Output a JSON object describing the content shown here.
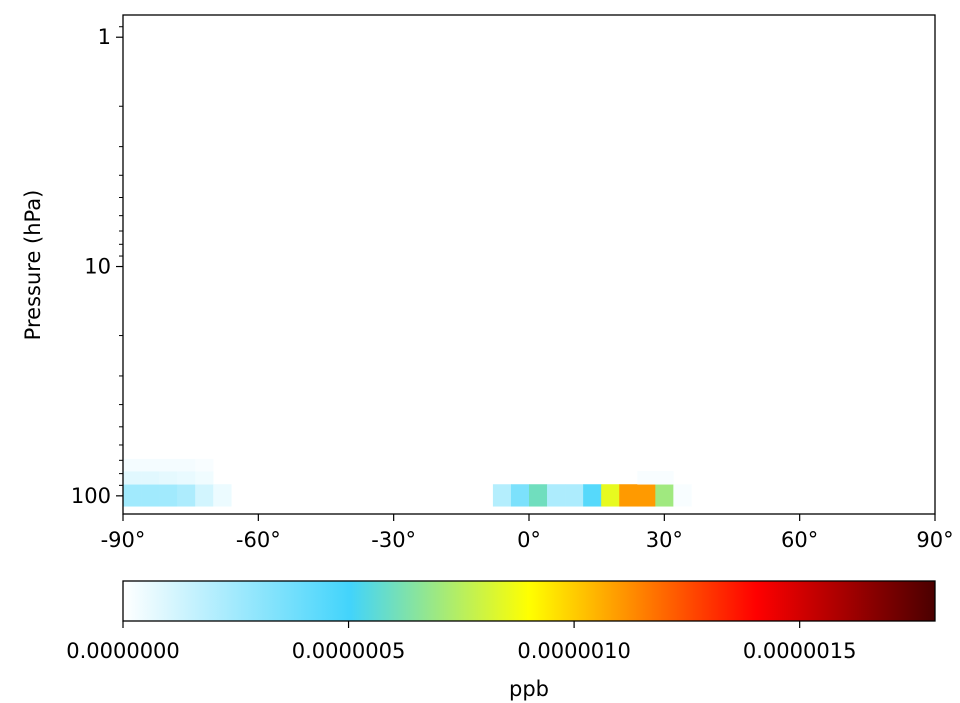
{
  "chart_data": {
    "type": "heatmap",
    "ylabel": "Pressure (hPa)",
    "xlabel": "",
    "x_scale": "linear",
    "y_scale": "log",
    "y_inverted": true,
    "xlim": [
      -90,
      90
    ],
    "ylim": [
      120,
      0.8
    ],
    "x_ticks": [
      -90,
      -60,
      -30,
      0,
      30,
      60,
      90
    ],
    "x_tick_labels": [
      "-90°",
      "-60°",
      "-30°",
      "0°",
      "30°",
      "60°",
      "90°"
    ],
    "y_ticks": [
      1,
      10,
      100
    ],
    "y_tick_labels": [
      "1",
      "10",
      "100"
    ],
    "colorbar": {
      "label": "ppb",
      "range": [
        0,
        1.8e-06
      ],
      "ticks": [
        0,
        5e-07,
        1e-06,
        1.5e-06
      ],
      "tick_labels": [
        "0.0000000",
        "0.0000005",
        "0.0000010",
        "0.0000015"
      ],
      "colormap": [
        "#ffffff",
        "#42d4fb",
        "#ffff00",
        "#ff0000",
        "#4a0000"
      ],
      "colormap_stops": [
        0,
        0.28,
        0.5,
        0.78,
        1
      ]
    },
    "bin_width_deg": 4,
    "cells": [
      {
        "lat_min": -90,
        "lat_max": -86,
        "p_top": 89,
        "p_bottom": 111,
        "value": 2.5e-07
      },
      {
        "lat_min": -86,
        "lat_max": -82,
        "p_top": 89,
        "p_bottom": 111,
        "value": 2.5e-07
      },
      {
        "lat_min": -82,
        "lat_max": -78,
        "p_top": 89,
        "p_bottom": 111,
        "value": 2.5e-07
      },
      {
        "lat_min": -78,
        "lat_max": -74,
        "p_top": 89,
        "p_bottom": 111,
        "value": 2.2e-07
      },
      {
        "lat_min": -74,
        "lat_max": -70,
        "p_top": 89,
        "p_bottom": 111,
        "value": 1.2e-07
      },
      {
        "lat_min": -70,
        "lat_max": -66,
        "p_top": 89,
        "p_bottom": 111,
        "value": 5e-08
      },
      {
        "lat_min": -90,
        "lat_max": -86,
        "p_top": 78,
        "p_bottom": 89,
        "value": 8e-08
      },
      {
        "lat_min": -86,
        "lat_max": -82,
        "p_top": 78,
        "p_bottom": 89,
        "value": 8e-08
      },
      {
        "lat_min": -82,
        "lat_max": -78,
        "p_top": 78,
        "p_bottom": 89,
        "value": 7e-08
      },
      {
        "lat_min": -78,
        "lat_max": -74,
        "p_top": 78,
        "p_bottom": 89,
        "value": 6e-08
      },
      {
        "lat_min": -74,
        "lat_max": -70,
        "p_top": 78,
        "p_bottom": 89,
        "value": 4e-08
      },
      {
        "lat_min": -90,
        "lat_max": -86,
        "p_top": 69,
        "p_bottom": 78,
        "value": 3e-08
      },
      {
        "lat_min": -86,
        "lat_max": -82,
        "p_top": 69,
        "p_bottom": 78,
        "value": 3e-08
      },
      {
        "lat_min": -82,
        "lat_max": -78,
        "p_top": 69,
        "p_bottom": 78,
        "value": 3e-08
      },
      {
        "lat_min": -78,
        "lat_max": -74,
        "p_top": 69,
        "p_bottom": 78,
        "value": 3e-08
      },
      {
        "lat_min": -74,
        "lat_max": -70,
        "p_top": 69,
        "p_bottom": 78,
        "value": 2e-08
      },
      {
        "lat_min": -8,
        "lat_max": -4,
        "p_top": 89,
        "p_bottom": 111,
        "value": 2e-07
      },
      {
        "lat_min": -4,
        "lat_max": 0,
        "p_top": 89,
        "p_bottom": 111,
        "value": 3.5e-07
      },
      {
        "lat_min": 0,
        "lat_max": 4,
        "p_top": 89,
        "p_bottom": 111,
        "value": 6e-07
      },
      {
        "lat_min": 4,
        "lat_max": 8,
        "p_top": 89,
        "p_bottom": 111,
        "value": 2.2e-07
      },
      {
        "lat_min": 8,
        "lat_max": 12,
        "p_top": 89,
        "p_bottom": 111,
        "value": 2.2e-07
      },
      {
        "lat_min": 12,
        "lat_max": 16,
        "p_top": 89,
        "p_bottom": 111,
        "value": 4.5e-07
      },
      {
        "lat_min": 16,
        "lat_max": 20,
        "p_top": 89,
        "p_bottom": 111,
        "value": 8.5e-07
      },
      {
        "lat_min": 20,
        "lat_max": 24,
        "p_top": 89,
        "p_bottom": 111,
        "value": 1.1e-06
      },
      {
        "lat_min": 24,
        "lat_max": 28,
        "p_top": 89,
        "p_bottom": 111,
        "value": 1.1e-06
      },
      {
        "lat_min": 28,
        "lat_max": 32,
        "p_top": 89,
        "p_bottom": 111,
        "value": 7e-07
      },
      {
        "lat_min": 32,
        "lat_max": 36,
        "p_top": 89,
        "p_bottom": 111,
        "value": 2e-08
      },
      {
        "lat_min": 24,
        "lat_max": 28,
        "p_top": 78,
        "p_bottom": 89,
        "value": 2e-08
      },
      {
        "lat_min": 28,
        "lat_max": 32,
        "p_top": 78,
        "p_bottom": 89,
        "value": 2e-08
      }
    ]
  }
}
